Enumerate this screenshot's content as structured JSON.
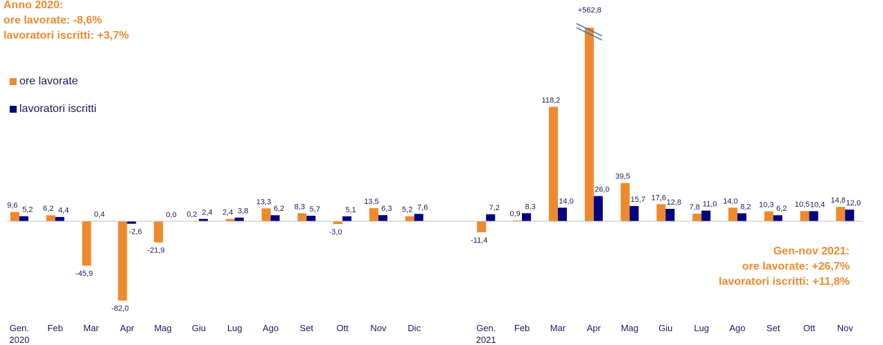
{
  "chart_data": {
    "type": "bar",
    "annotations": [
      {
        "lines": [
          "Anno 2020:",
          "ore lavorate: -8,6%",
          "lavoratori iscritti: +3,7%"
        ]
      },
      {
        "lines": [
          "Gen-nov 2021:",
          "ore lavorate: +26,7%",
          "lavoratori iscritti: +11,8%"
        ]
      }
    ],
    "categories": [
      "Gen.\n2020",
      "Feb",
      "Mar",
      "Apr",
      "Mag",
      "Giu",
      "Lug",
      "Ago",
      "Set",
      "Ott",
      "Nov",
      "Dic",
      null,
      "Gen.\n2021",
      "Feb",
      "Mar",
      "Apr",
      "Mag",
      "Giu",
      "Lug",
      "Ago",
      "Set",
      "Ott",
      "Nov"
    ],
    "series": [
      {
        "name": "ore lavorate",
        "color": "#ee8a2e",
        "values": [
          9.6,
          6.2,
          -45.9,
          -82.0,
          -21.9,
          0.2,
          2.4,
          13.3,
          8.3,
          -3.0,
          13.5,
          5.2,
          null,
          -11.4,
          0.9,
          118.2,
          562.8,
          39.5,
          17.6,
          7.8,
          14.0,
          10.3,
          10.5,
          14.8
        ],
        "value_labels": [
          "9,6",
          "6,2",
          "-45,9",
          "-82,0",
          "-21,9",
          "0,2",
          "2,4",
          "13,3",
          "8,3",
          "-3,0",
          "13,5",
          "5,2",
          null,
          "-11,4",
          "0,9",
          "118,2",
          "+562,8",
          "39,5",
          "17,6",
          "7,8",
          "14,0",
          "10,3",
          "10,5",
          "14,8"
        ]
      },
      {
        "name": "lavoratori iscritti",
        "color": "#000080",
        "values": [
          5.2,
          4.4,
          0.4,
          -2.6,
          0.0,
          2.4,
          3.8,
          6.2,
          5.7,
          5.1,
          6.3,
          7.6,
          null,
          7.2,
          8.3,
          14.0,
          26.0,
          15.7,
          12.8,
          11.0,
          8.2,
          6.2,
          10.4,
          12.0
        ],
        "value_labels": [
          "5,2",
          "4,4",
          "0,4",
          "-2,6",
          "0,0",
          "2,4",
          "3,8",
          "6,2",
          "5,7",
          "5,1",
          "6,3",
          "7,6",
          null,
          "7,2",
          "8,3",
          "14,0",
          "26,0",
          "15,7",
          "12,8",
          "11,0",
          "8,2",
          "6,2",
          "10,4",
          "12,0"
        ]
      }
    ],
    "ylim": [
      -90,
      200
    ],
    "axis_break": true
  }
}
